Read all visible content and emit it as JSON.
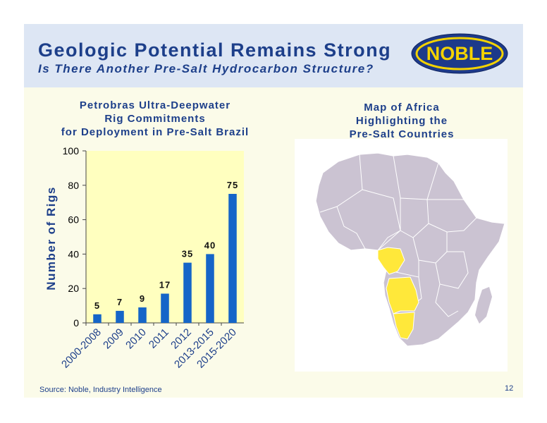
{
  "slide": {
    "title": "Geologic Potential Remains Strong",
    "subtitle": "Is There Another Pre-Salt Hydrocarbon Structure?",
    "logo_text": "NOBLE",
    "source": "Source: Noble, Industry Intelligence",
    "page_number": "12"
  },
  "map": {
    "title_lines": [
      "Map of Africa",
      "Highlighting the",
      "Pre-Salt Countries"
    ],
    "land_color": "#cbc3d2",
    "highlight_color": "#ffe83a"
  },
  "chart_data": {
    "type": "bar",
    "title_lines": [
      "Petrobras Ultra-Deepwater",
      "Rig Commitments",
      "for Deployment in Pre-Salt Brazil"
    ],
    "categories": [
      "2000-2008",
      "2009",
      "2010",
      "2011",
      "2012",
      "2013-2015",
      "2015-2020"
    ],
    "values": [
      5,
      7,
      9,
      17,
      35,
      40,
      75
    ],
    "ylabel": "Number of Rigs",
    "xlabel": "",
    "ylim": [
      0,
      100
    ],
    "yticks": [
      0,
      20,
      40,
      60,
      80,
      100
    ],
    "bar_color": "#1565c8",
    "plot_bg": "#ffffbf",
    "grid": false
  }
}
